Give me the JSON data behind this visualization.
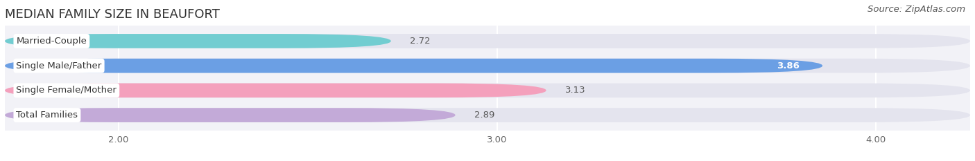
{
  "title": "MEDIAN FAMILY SIZE IN BEAUFORT",
  "source": "Source: ZipAtlas.com",
  "categories": [
    "Married-Couple",
    "Single Male/Father",
    "Single Female/Mother",
    "Total Families"
  ],
  "values": [
    2.72,
    3.86,
    3.13,
    2.89
  ],
  "bar_colors": [
    "#72cdd1",
    "#6b9fe4",
    "#f4a0bc",
    "#c3aad8"
  ],
  "xlim_data": [
    1.7,
    4.25
  ],
  "xmin": 1.7,
  "xticks": [
    2.0,
    3.0,
    4.0
  ],
  "xtick_labels": [
    "2.00",
    "3.00",
    "4.00"
  ],
  "bar_height": 0.58,
  "background_color": "#ffffff",
  "plot_bg_color": "#f2f2f7",
  "bar_bg_color": "#e4e4ee",
  "title_fontsize": 13,
  "source_fontsize": 9.5,
  "label_fontsize": 9.5,
  "value_fontsize": 9.5,
  "inside_value_color": "#ffffff",
  "outside_value_color": "#555555"
}
